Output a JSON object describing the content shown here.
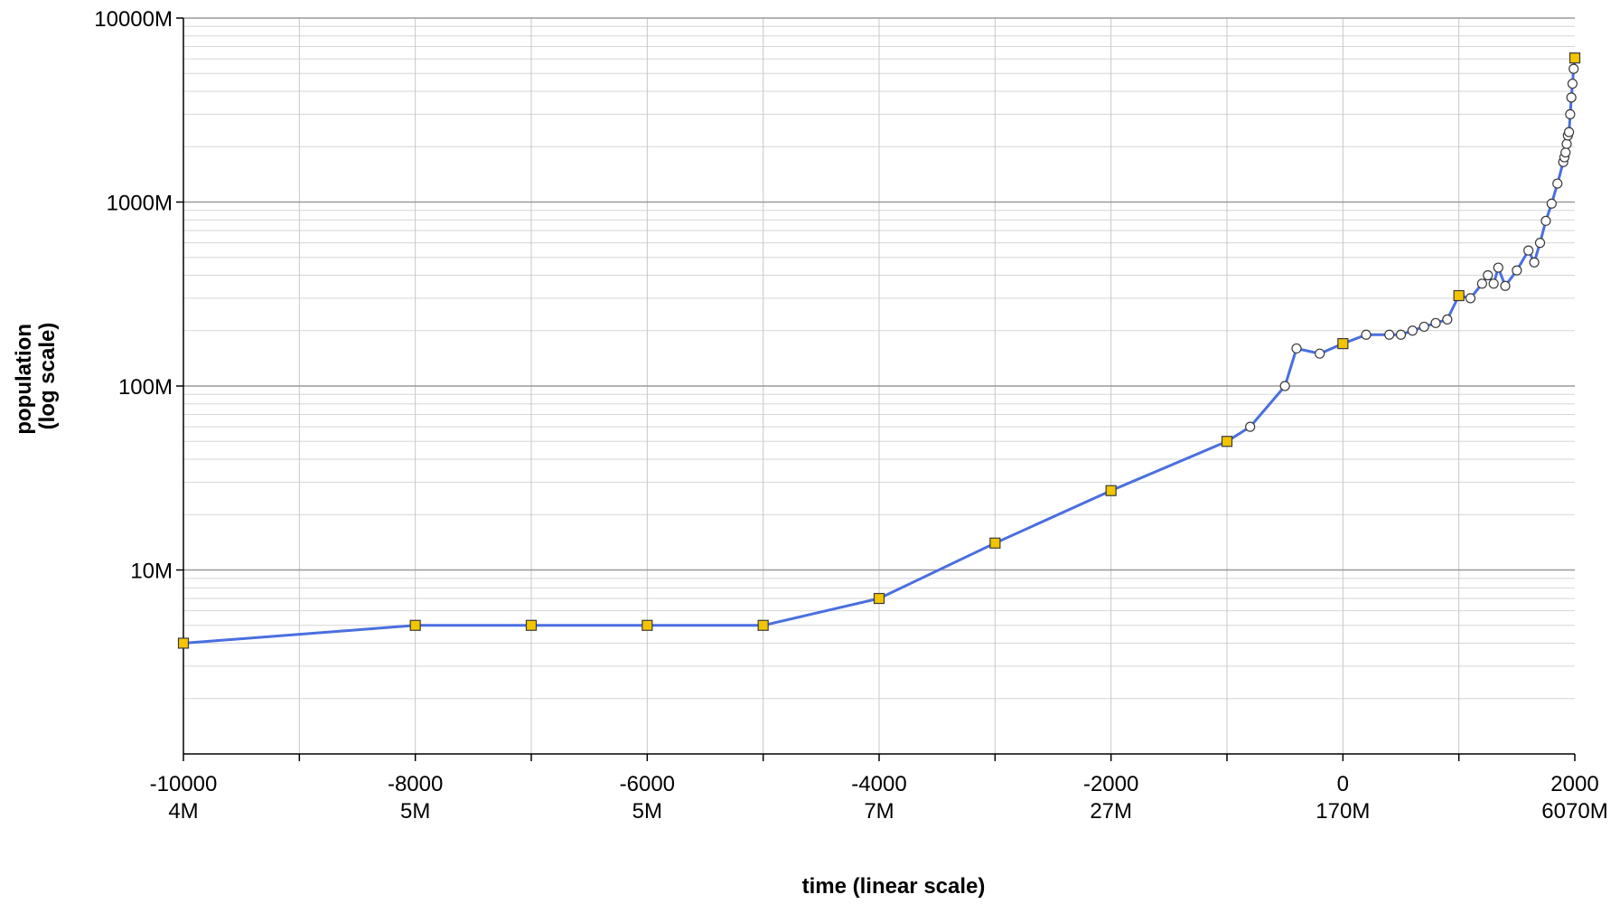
{
  "chart_data": {
    "type": "line",
    "title": "",
    "xlabel": "time (linear scale)",
    "ylabel_lines": [
      "population",
      "(log scale)"
    ],
    "x_scale": "linear",
    "y_scale": "log",
    "xlim": [
      -10000,
      2000
    ],
    "ylim": [
      1,
      10000
    ],
    "y_unit": "M",
    "grid": true,
    "legend": "none",
    "line_color": "#4a6fe0",
    "marker_fill_square": "#f2c500",
    "marker_fill_circle": "#ffffff",
    "x_ticks": [
      {
        "value": -10000,
        "label": "-10000",
        "sublabel": "4M"
      },
      {
        "value": -8000,
        "label": "-8000",
        "sublabel": "5M"
      },
      {
        "value": -6000,
        "label": "-6000",
        "sublabel": "5M"
      },
      {
        "value": -4000,
        "label": "-4000",
        "sublabel": "7M"
      },
      {
        "value": -2000,
        "label": "-2000",
        "sublabel": "27M"
      },
      {
        "value": 0,
        "label": "0",
        "sublabel": "170M"
      },
      {
        "value": 2000,
        "label": "2000",
        "sublabel": "6070M"
      }
    ],
    "y_ticks": [
      {
        "value": 10,
        "label": "10M"
      },
      {
        "value": 100,
        "label": "100M"
      },
      {
        "value": 1000,
        "label": "1000M"
      },
      {
        "value": 10000,
        "label": "10000M"
      }
    ],
    "series": [
      {
        "points": [
          {
            "x": -10000,
            "y": 4,
            "marker": "square"
          },
          {
            "x": -8000,
            "y": 5,
            "marker": "square"
          },
          {
            "x": -7000,
            "y": 5,
            "marker": "square"
          },
          {
            "x": -6000,
            "y": 5,
            "marker": "square"
          },
          {
            "x": -5000,
            "y": 5,
            "marker": "square"
          },
          {
            "x": -4000,
            "y": 7,
            "marker": "square"
          },
          {
            "x": -3000,
            "y": 14,
            "marker": "square"
          },
          {
            "x": -2000,
            "y": 27,
            "marker": "square"
          },
          {
            "x": -1000,
            "y": 50,
            "marker": "square"
          },
          {
            "x": -800,
            "y": 60,
            "marker": "circle"
          },
          {
            "x": -500,
            "y": 100,
            "marker": "circle"
          },
          {
            "x": -400,
            "y": 160,
            "marker": "circle"
          },
          {
            "x": -200,
            "y": 150,
            "marker": "circle"
          },
          {
            "x": 0,
            "y": 170,
            "marker": "square"
          },
          {
            "x": 200,
            "y": 190,
            "marker": "circle"
          },
          {
            "x": 400,
            "y": 190,
            "marker": "circle"
          },
          {
            "x": 500,
            "y": 190,
            "marker": "circle"
          },
          {
            "x": 600,
            "y": 200,
            "marker": "circle"
          },
          {
            "x": 700,
            "y": 210,
            "marker": "circle"
          },
          {
            "x": 800,
            "y": 220,
            "marker": "circle"
          },
          {
            "x": 900,
            "y": 230,
            "marker": "circle"
          },
          {
            "x": 1000,
            "y": 310,
            "marker": "square"
          },
          {
            "x": 1100,
            "y": 300,
            "marker": "circle"
          },
          {
            "x": 1200,
            "y": 360,
            "marker": "circle"
          },
          {
            "x": 1250,
            "y": 400,
            "marker": "circle"
          },
          {
            "x": 1300,
            "y": 360,
            "marker": "circle"
          },
          {
            "x": 1340,
            "y": 440,
            "marker": "circle"
          },
          {
            "x": 1400,
            "y": 350,
            "marker": "circle"
          },
          {
            "x": 1500,
            "y": 425,
            "marker": "circle"
          },
          {
            "x": 1600,
            "y": 545,
            "marker": "circle"
          },
          {
            "x": 1650,
            "y": 470,
            "marker": "circle"
          },
          {
            "x": 1700,
            "y": 600,
            "marker": "circle"
          },
          {
            "x": 1750,
            "y": 790,
            "marker": "circle"
          },
          {
            "x": 1800,
            "y": 980,
            "marker": "circle"
          },
          {
            "x": 1850,
            "y": 1260,
            "marker": "circle"
          },
          {
            "x": 1900,
            "y": 1650,
            "marker": "circle"
          },
          {
            "x": 1910,
            "y": 1750,
            "marker": "circle"
          },
          {
            "x": 1920,
            "y": 1860,
            "marker": "circle"
          },
          {
            "x": 1930,
            "y": 2070,
            "marker": "circle"
          },
          {
            "x": 1940,
            "y": 2300,
            "marker": "circle"
          },
          {
            "x": 1950,
            "y": 2400,
            "marker": "circle"
          },
          {
            "x": 1960,
            "y": 3000,
            "marker": "circle"
          },
          {
            "x": 1970,
            "y": 3700,
            "marker": "circle"
          },
          {
            "x": 1980,
            "y": 4400,
            "marker": "circle"
          },
          {
            "x": 1990,
            "y": 5300,
            "marker": "circle"
          },
          {
            "x": 2000,
            "y": 6070,
            "marker": "square"
          }
        ]
      }
    ]
  }
}
